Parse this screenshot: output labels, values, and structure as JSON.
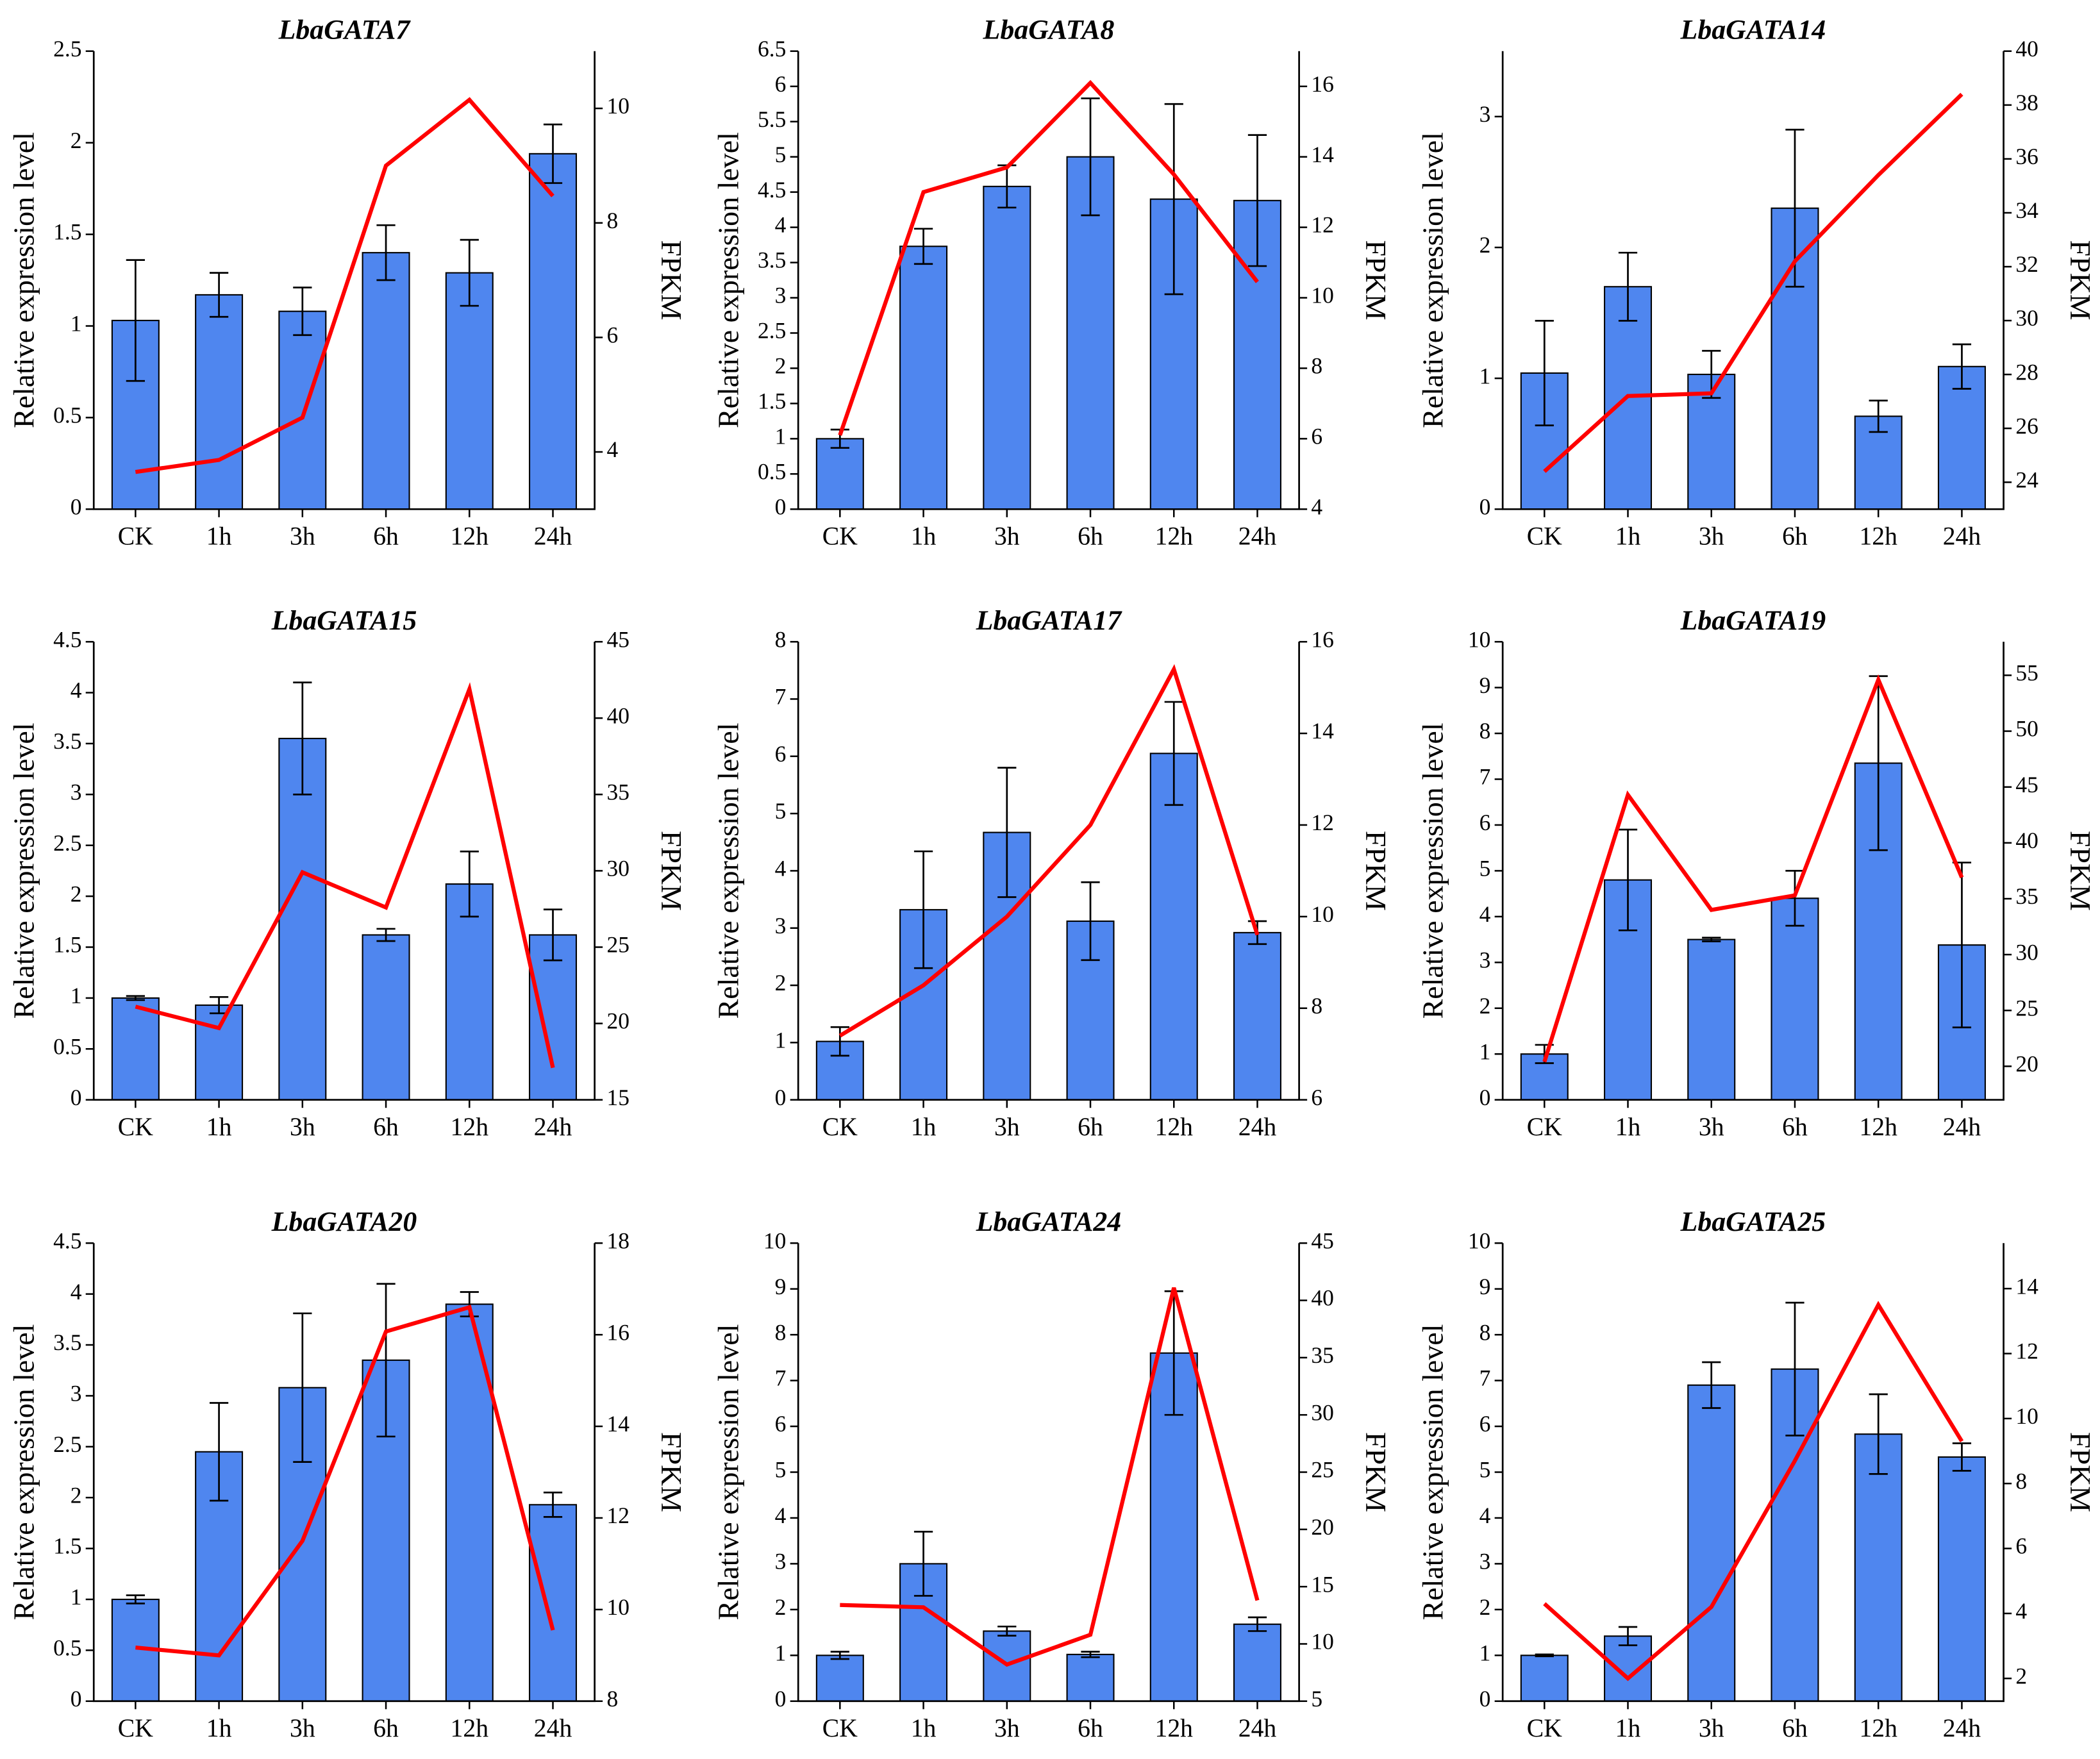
{
  "chart_data": [
    {
      "type": "bar",
      "title": "LbaGATA7",
      "ylabel": "Relative expression level",
      "y2label": "FPKM",
      "categories": [
        "CK",
        "1h",
        "3h",
        "6h",
        "12h",
        "24h"
      ],
      "ylim": [
        0,
        2.5
      ],
      "yticks": [
        0,
        0.5,
        1,
        1.5,
        2,
        2.5
      ],
      "y2lim": [
        3,
        11
      ],
      "y2ticks": [
        4,
        6,
        8,
        10
      ],
      "series": [
        {
          "type": "bar",
          "color": "#4f86ef",
          "values": [
            1.03,
            1.17,
            1.08,
            1.4,
            1.29,
            1.94
          ],
          "errors": [
            0.33,
            0.12,
            0.13,
            0.15,
            0.18,
            0.16
          ]
        },
        {
          "type": "line",
          "axis": "y2",
          "color": "#ff0000",
          "values": [
            3.65,
            3.86,
            4.6,
            9.0,
            10.15,
            8.47
          ]
        }
      ]
    },
    {
      "type": "bar",
      "title": "LbaGATA8",
      "ylabel": "Relative expression level",
      "y2label": "FPKM",
      "categories": [
        "CK",
        "1h",
        "3h",
        "6h",
        "12h",
        "24h"
      ],
      "ylim": [
        0,
        6.5
      ],
      "yticks": [
        0,
        0.5,
        1,
        1.5,
        2,
        2.5,
        3,
        3.5,
        4,
        4.5,
        5,
        5.5,
        6,
        6.5
      ],
      "y2lim": [
        4,
        17
      ],
      "y2ticks": [
        4,
        6,
        8,
        10,
        12,
        14,
        16
      ],
      "series": [
        {
          "type": "bar",
          "color": "#4f86ef",
          "values": [
            1.0,
            3.73,
            4.58,
            5.0,
            4.4,
            4.38
          ],
          "errors": [
            0.13,
            0.25,
            0.3,
            0.83,
            1.35,
            0.93
          ]
        },
        {
          "type": "line",
          "axis": "y2",
          "color": "#ff0000",
          "values": [
            6.1,
            13.0,
            13.7,
            16.1,
            13.5,
            10.45
          ]
        }
      ]
    },
    {
      "type": "bar",
      "title": "LbaGATA14",
      "ylabel": "Relative expression level",
      "y2label": "FPKM",
      "categories": [
        "CK",
        "1h",
        "3h",
        "6h",
        "12h",
        "24h"
      ],
      "ylim": [
        0,
        3.5
      ],
      "yticks": [
        0,
        1,
        2,
        3
      ],
      "y2lim": [
        23,
        40
      ],
      "y2ticks": [
        24,
        26,
        28,
        30,
        32,
        34,
        36,
        38,
        40
      ],
      "series": [
        {
          "type": "bar",
          "color": "#4f86ef",
          "values": [
            1.04,
            1.7,
            1.03,
            2.3,
            0.71,
            1.09
          ],
          "errors": [
            0.4,
            0.26,
            0.18,
            0.6,
            0.12,
            0.17
          ]
        },
        {
          "type": "line",
          "axis": "y2",
          "color": "#ff0000",
          "values": [
            24.4,
            27.2,
            27.3,
            32.2,
            35.4,
            38.4
          ]
        }
      ]
    },
    {
      "type": "bar",
      "title": "LbaGATA15",
      "ylabel": "Relative expression level",
      "y2label": "FPKM",
      "categories": [
        "CK",
        "1h",
        "3h",
        "6h",
        "12h",
        "24h"
      ],
      "ylim": [
        0,
        4.5
      ],
      "yticks": [
        0,
        0.5,
        1,
        1.5,
        2,
        2.5,
        3,
        3.5,
        4,
        4.5
      ],
      "y2lim": [
        15,
        45
      ],
      "y2ticks": [
        15,
        20,
        25,
        30,
        35,
        40,
        45
      ],
      "series": [
        {
          "type": "bar",
          "color": "#4f86ef",
          "values": [
            1.0,
            0.93,
            3.55,
            1.62,
            2.12,
            1.62
          ],
          "errors": [
            0.02,
            0.08,
            0.55,
            0.06,
            0.32,
            0.25
          ]
        },
        {
          "type": "line",
          "axis": "y2",
          "color": "#ff0000",
          "values": [
            21.1,
            19.7,
            29.9,
            27.6,
            41.9,
            17.1
          ]
        }
      ]
    },
    {
      "type": "bar",
      "title": "LbaGATA17",
      "ylabel": "Relative expression level",
      "y2label": "FPKM",
      "categories": [
        "CK",
        "1h",
        "3h",
        "6h",
        "12h",
        "24h"
      ],
      "ylim": [
        0,
        8
      ],
      "yticks": [
        0,
        1,
        2,
        3,
        4,
        5,
        6,
        7,
        8
      ],
      "y2lim": [
        6,
        16
      ],
      "y2ticks": [
        6,
        8,
        10,
        12,
        14,
        16
      ],
      "series": [
        {
          "type": "bar",
          "color": "#4f86ef",
          "values": [
            1.02,
            3.32,
            4.67,
            3.12,
            6.05,
            2.92
          ],
          "errors": [
            0.25,
            1.02,
            1.13,
            0.68,
            0.9,
            0.2
          ]
        },
        {
          "type": "line",
          "axis": "y2",
          "color": "#ff0000",
          "values": [
            7.4,
            8.5,
            10.0,
            12.0,
            15.4,
            9.6
          ]
        }
      ]
    },
    {
      "type": "bar",
      "title": "LbaGATA19",
      "ylabel": "Relative expression level",
      "y2label": "FPKM",
      "categories": [
        "CK",
        "1h",
        "3h",
        "6h",
        "12h",
        "24h"
      ],
      "ylim": [
        0,
        10
      ],
      "yticks": [
        0,
        1,
        2,
        3,
        4,
        5,
        6,
        7,
        8,
        9,
        10
      ],
      "y2lim": [
        17,
        58
      ],
      "y2ticks": [
        20,
        25,
        30,
        35,
        40,
        45,
        50,
        55
      ],
      "series": [
        {
          "type": "bar",
          "color": "#4f86ef",
          "values": [
            1.0,
            4.8,
            3.5,
            4.4,
            7.35,
            3.38
          ],
          "errors": [
            0.2,
            1.1,
            0.04,
            0.6,
            1.9,
            1.8
          ]
        },
        {
          "type": "line",
          "axis": "y2",
          "color": "#ff0000",
          "values": [
            20.4,
            44.3,
            34.0,
            35.3,
            54.6,
            36.9
          ]
        }
      ]
    },
    {
      "type": "bar",
      "title": "LbaGATA20",
      "ylabel": "Relative expression level",
      "y2label": "FPKM",
      "categories": [
        "CK",
        "1h",
        "3h",
        "6h",
        "12h",
        "24h"
      ],
      "ylim": [
        0,
        4.5
      ],
      "yticks": [
        0,
        0.5,
        1,
        1.5,
        2,
        2.5,
        3,
        3.5,
        4,
        4.5
      ],
      "y2lim": [
        8,
        18
      ],
      "y2ticks": [
        8,
        10,
        12,
        14,
        16,
        18
      ],
      "series": [
        {
          "type": "bar",
          "color": "#4f86ef",
          "values": [
            1.0,
            2.45,
            3.08,
            3.35,
            3.9,
            1.93
          ],
          "errors": [
            0.04,
            0.48,
            0.73,
            0.75,
            0.12,
            0.12
          ]
        },
        {
          "type": "line",
          "axis": "y2",
          "color": "#ff0000",
          "values": [
            9.17,
            9.0,
            11.5,
            16.07,
            16.6,
            9.55
          ]
        }
      ]
    },
    {
      "type": "bar",
      "title": "LbaGATA24",
      "ylabel": "Relative expression level",
      "y2label": "FPKM",
      "categories": [
        "CK",
        "1h",
        "3h",
        "6h",
        "12h",
        "24h"
      ],
      "ylim": [
        0,
        10
      ],
      "yticks": [
        0,
        1,
        2,
        3,
        4,
        5,
        6,
        7,
        8,
        9,
        10
      ],
      "y2lim": [
        5,
        45
      ],
      "y2ticks": [
        5,
        10,
        15,
        20,
        25,
        30,
        35,
        40,
        45
      ],
      "series": [
        {
          "type": "bar",
          "color": "#4f86ef",
          "values": [
            1.0,
            3.0,
            1.53,
            1.02,
            7.6,
            1.68
          ],
          "errors": [
            0.08,
            0.7,
            0.1,
            0.06,
            1.35,
            0.15
          ]
        },
        {
          "type": "line",
          "axis": "y2",
          "color": "#ff0000",
          "values": [
            13.4,
            13.2,
            8.2,
            10.8,
            41.1,
            13.8
          ]
        }
      ]
    },
    {
      "type": "bar",
      "title": "LbaGATA25",
      "ylabel": "Relative expression level",
      "y2label": "FPKM",
      "categories": [
        "CK",
        "1h",
        "3h",
        "6h",
        "12h",
        "24h"
      ],
      "ylim": [
        0,
        10
      ],
      "yticks": [
        0,
        1,
        2,
        3,
        4,
        5,
        6,
        7,
        8,
        9,
        10
      ],
      "y2lim": [
        1.3,
        15.4
      ],
      "y2ticks": [
        2,
        4,
        6,
        8,
        10,
        12,
        14
      ],
      "series": [
        {
          "type": "bar",
          "color": "#4f86ef",
          "values": [
            1.0,
            1.42,
            6.9,
            7.25,
            5.83,
            5.33
          ],
          "errors": [
            0.02,
            0.2,
            0.5,
            1.45,
            0.87,
            0.3
          ]
        },
        {
          "type": "line",
          "axis": "y2",
          "color": "#ff0000",
          "values": [
            4.3,
            2.0,
            4.2,
            8.7,
            13.5,
            9.3
          ]
        }
      ]
    }
  ]
}
